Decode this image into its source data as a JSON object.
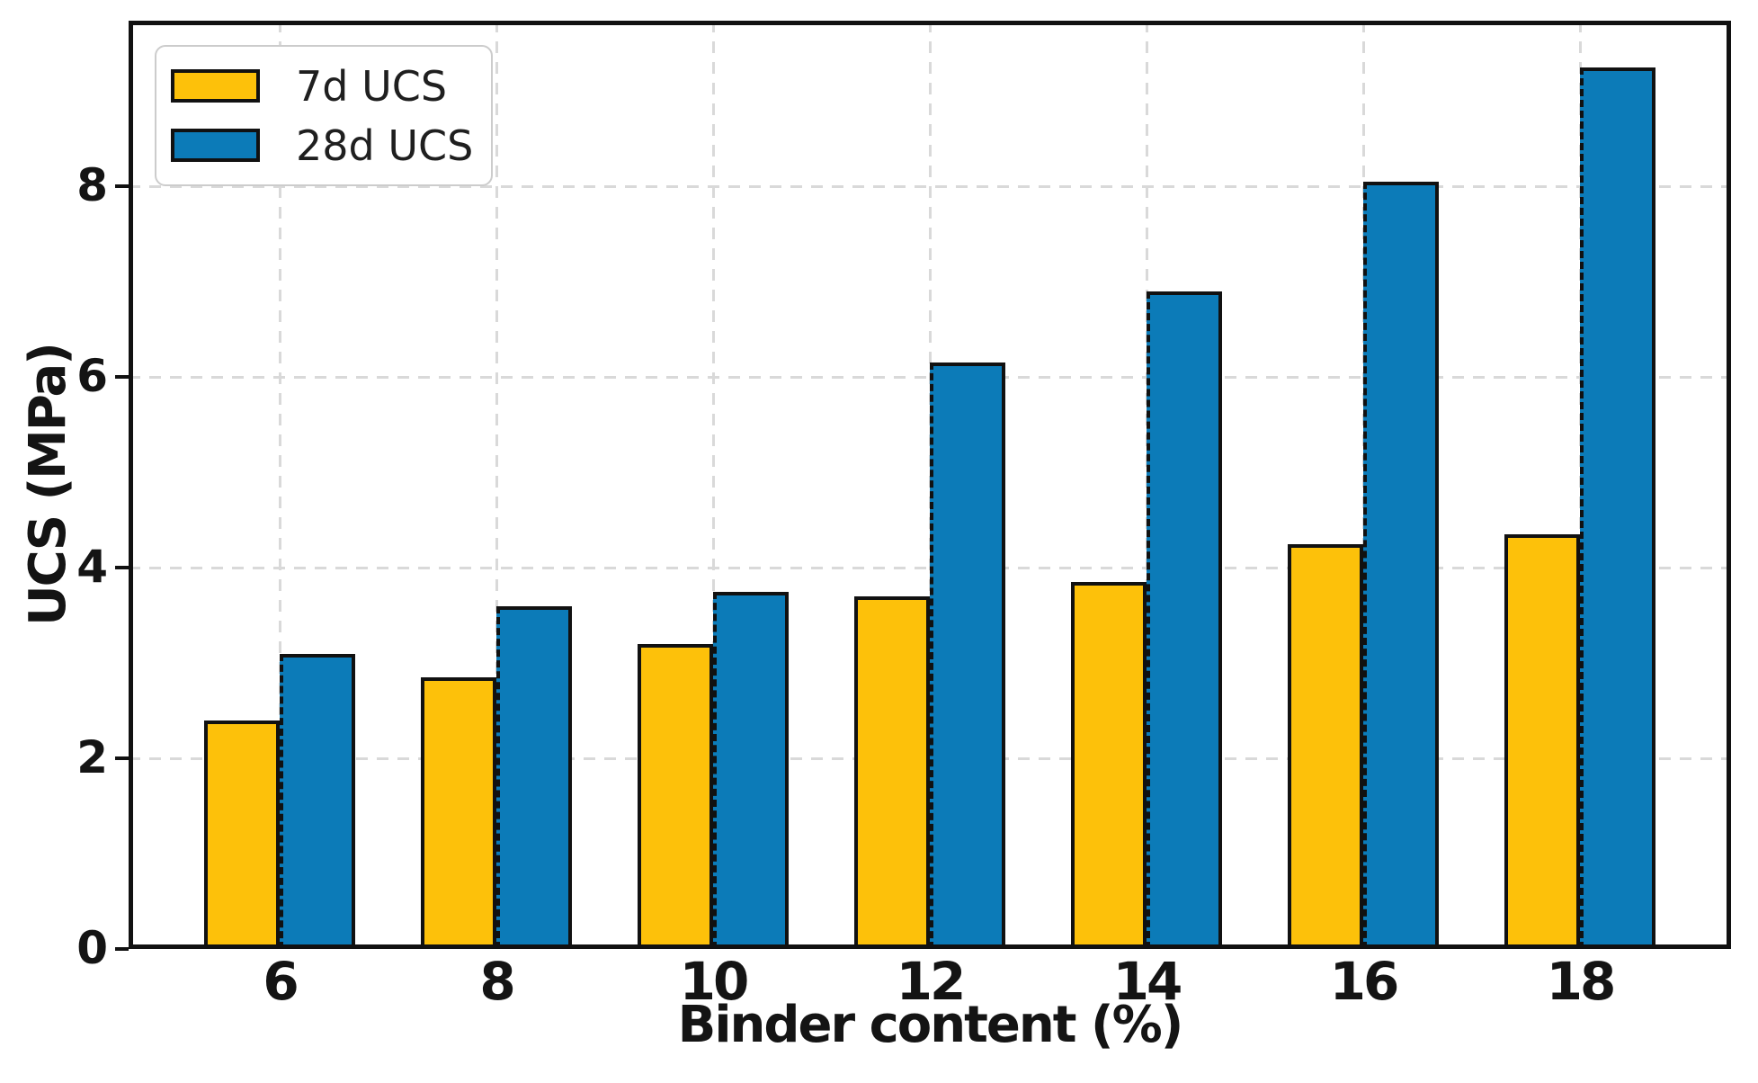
{
  "chart_data": {
    "type": "bar",
    "title": "",
    "xlabel": "Binder content (%)",
    "ylabel": "UCS (MPa)",
    "categories": [
      "6",
      "8",
      "10",
      "12",
      "14",
      "16",
      "18"
    ],
    "series": [
      {
        "name": "7d UCS",
        "color": "#FDC10A",
        "values": [
          2.4,
          2.85,
          3.2,
          3.7,
          3.85,
          4.25,
          4.35
        ]
      },
      {
        "name": "28d UCS",
        "color": "#0C7BB8",
        "values": [
          3.1,
          3.6,
          3.75,
          6.15,
          6.9,
          8.05,
          9.25
        ]
      }
    ],
    "yticks": [
      0,
      2,
      4,
      6,
      8
    ],
    "ylim": [
      0,
      9.74
    ],
    "grid": true,
    "legend_position": "upper-left",
    "edge_color": "#111111",
    "grid_color": "#d9d9d9"
  }
}
